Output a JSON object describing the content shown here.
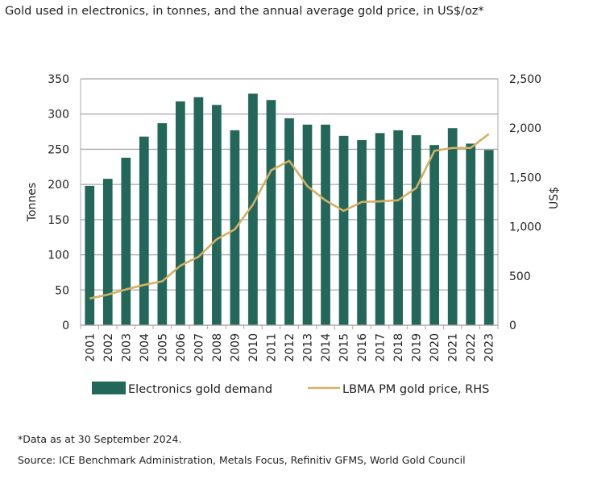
{
  "chart_data": {
    "type": "bar+line",
    "title": "Gold used in electronics, in tonnes, and the annual average gold price, in US$/oz*",
    "ylabel": "Tonnes",
    "y2label": "US$",
    "ylim": [
      0,
      350
    ],
    "y2lim": [
      0,
      2500
    ],
    "yticks": [
      0,
      50,
      100,
      150,
      200,
      250,
      300,
      350
    ],
    "y2ticks": [
      "0",
      "500",
      "1,000",
      "1,500",
      "2,000",
      "2,500"
    ],
    "y2tick_values": [
      0,
      500,
      1000,
      1500,
      2000,
      2500
    ],
    "grid": true,
    "legend_placement": "bottom",
    "categories": [
      "2001",
      "2002",
      "2003",
      "2004",
      "2005",
      "2006",
      "2007",
      "2008",
      "2009",
      "2010",
      "2011",
      "2012",
      "2013",
      "2014",
      "2015",
      "2016",
      "2017",
      "2018",
      "2019",
      "2020",
      "2021",
      "2022",
      "2023"
    ],
    "series": [
      {
        "name": "Electronics gold demand",
        "type": "bar",
        "axis": "left",
        "color": "#23665a",
        "values": [
          198,
          208,
          238,
          268,
          287,
          318,
          324,
          313,
          277,
          329,
          320,
          294,
          285,
          285,
          269,
          263,
          273,
          277,
          270,
          256,
          280,
          258,
          249
        ]
      },
      {
        "name": "LBMA PM gold price, RHS",
        "type": "line",
        "axis": "right",
        "color": "#d4b062",
        "values": [
          271,
          310,
          363,
          409,
          445,
          604,
          695,
          872,
          972,
          1225,
          1572,
          1669,
          1411,
          1266,
          1160,
          1251,
          1257,
          1268,
          1393,
          1770,
          1799,
          1800,
          1941
        ]
      }
    ]
  },
  "footnotes": {
    "note": "*Data as at 30 September 2024.",
    "source": "Source: ICE Benchmark Administration, Metals Focus, Refinitiv GFMS, World Gold Council"
  }
}
